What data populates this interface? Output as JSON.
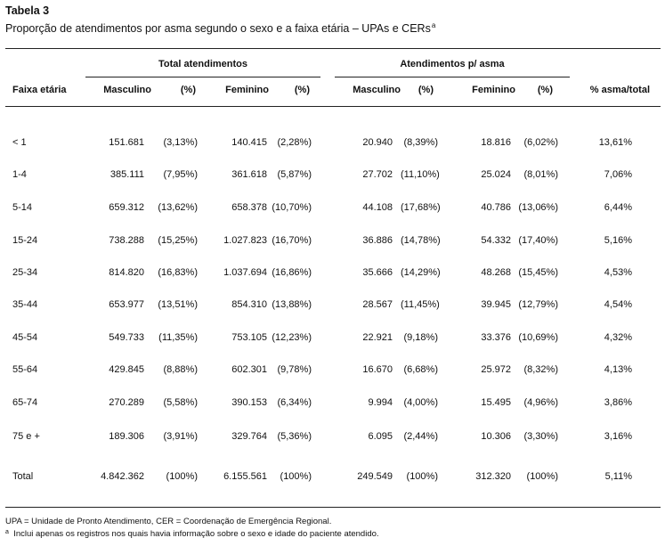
{
  "title": "Tabela 3",
  "subtitle": "Proporção de atendimentos por asma segundo o sexo e a faixa etária – UPAs e CERs",
  "subtitle_mark": "a",
  "headers": {
    "group1": "Total atendimentos",
    "group2": "Atendimentos p/ asma",
    "faixa": "Faixa etária",
    "masc1": "Masculino",
    "pct1": "(%)",
    "fem1": "Feminino",
    "pct2": "(%)",
    "masc2": "Masculino",
    "pct3": "(%)",
    "fem2": "Feminino",
    "pct4": "(%)",
    "ratio": "% asma/total"
  },
  "rows": [
    [
      "< 1",
      "151.681",
      "(3,13%)",
      "140.415",
      "(2,28%)",
      "20.940",
      "(8,39%)",
      "18.816",
      "(6,02%)",
      "13,61%"
    ],
    [
      "1-4",
      "385.111",
      "(7,95%)",
      "361.618",
      "(5,87%)",
      "27.702",
      "(11,10%)",
      "25.024",
      "(8,01%)",
      "7,06%"
    ],
    [
      "5-14",
      "659.312",
      "(13,62%)",
      "658.378",
      "(10,70%)",
      "44.108",
      "(17,68%)",
      "40.786",
      "(13,06%)",
      "6,44%"
    ],
    [
      "15-24",
      "738.288",
      "(15,25%)",
      "1.027.823",
      "(16,70%)",
      "36.886",
      "(14,78%)",
      "54.332",
      "(17,40%)",
      "5,16%"
    ],
    [
      "25-34",
      "814.820",
      "(16,83%)",
      "1.037.694",
      "(16,86%)",
      "35.666",
      "(14,29%)",
      "48.268",
      "(15,45%)",
      "4,53%"
    ],
    [
      "35-44",
      "653.977",
      "(13,51%)",
      "854.310",
      "(13,88%)",
      "28.567",
      "(11,45%)",
      "39.945",
      "(12,79%)",
      "4,54%"
    ],
    [
      "45-54",
      "549.733",
      "(11,35%)",
      "753.105",
      "(12,23%)",
      "22.921",
      "(9,18%)",
      "33.376",
      "(10,69%)",
      "4,32%"
    ],
    [
      "55-64",
      "429.845",
      "(8,88%)",
      "602.301",
      "(9,78%)",
      "16.670",
      "(6,68%)",
      "25.972",
      "(8,32%)",
      "4,13%"
    ],
    [
      "65-74",
      "270.289",
      "(5,58%)",
      "390.153",
      "(6,34%)",
      "9.994",
      "(4,00%)",
      "15.495",
      "(4,96%)",
      "3,86%"
    ],
    [
      "75 e +",
      "189.306",
      "(3,91%)",
      "329.764",
      "(5,36%)",
      "6.095",
      "(2,44%)",
      "10.306",
      "(3,30%)",
      "3,16%"
    ]
  ],
  "total": [
    "Total",
    "4.842.362",
    "(100%)",
    "6.155.561",
    "(100%)",
    "249.549",
    "(100%)",
    "312.320",
    "(100%)",
    "5,11%"
  ],
  "footnotes": {
    "line1": "UPA = Unidade de Pronto Atendimento, CER = Coordenação de Emergência Regional.",
    "mark": "a",
    "line2": "Inclui apenas os registros nos quais havia informação sobre o sexo e idade do paciente atendido."
  }
}
